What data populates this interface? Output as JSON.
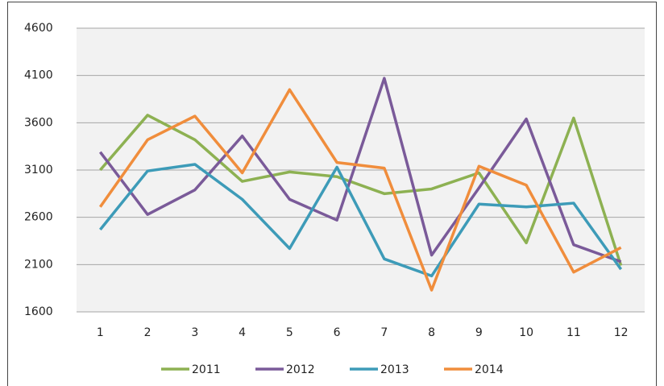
{
  "chart_data": {
    "type": "line",
    "categories": [
      "1",
      "2",
      "3",
      "4",
      "5",
      "6",
      "7",
      "8",
      "9",
      "10",
      "11",
      "12"
    ],
    "series": [
      {
        "name": "2011",
        "color": "#8db152",
        "values": [
          3100,
          3680,
          3420,
          2980,
          3080,
          3030,
          2850,
          2900,
          3070,
          2330,
          3650,
          2090
        ]
      },
      {
        "name": "2012",
        "color": "#7a5a99",
        "values": [
          3290,
          2630,
          2890,
          3460,
          2790,
          2570,
          4070,
          2200,
          2910,
          3640,
          2310,
          2130
        ]
      },
      {
        "name": "2013",
        "color": "#3d9bb8",
        "values": [
          2470,
          3090,
          3160,
          2790,
          2270,
          3130,
          2160,
          1980,
          2740,
          2710,
          2750,
          2050
        ]
      },
      {
        "name": "2014",
        "color": "#f08d3c",
        "values": [
          2710,
          3420,
          3670,
          3070,
          3950,
          3180,
          3120,
          1830,
          3140,
          2940,
          2020,
          2280
        ]
      }
    ],
    "ylim": [
      1600,
      4600
    ],
    "yticks": [
      1600,
      2100,
      2600,
      3100,
      3600,
      4100,
      4600
    ],
    "grid": true,
    "legend": "bottom"
  }
}
